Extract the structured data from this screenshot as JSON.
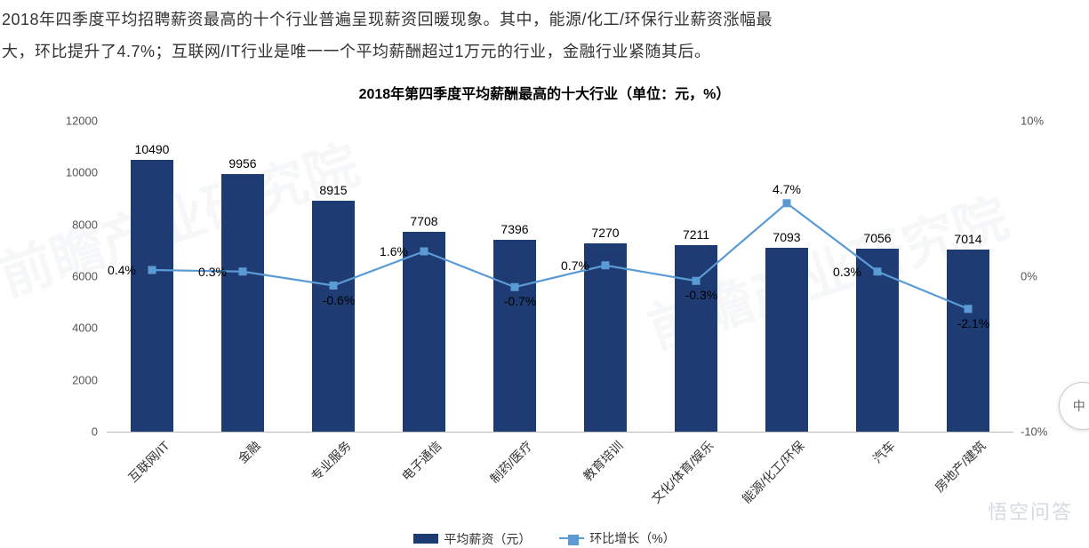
{
  "intro": {
    "line1": "2018年四季度平均招聘薪资最高的十个行业普遍呈现薪资回暖现象。其中，能源/化工/环保行业薪资涨幅最",
    "line2": "大，环比提升了4.7%；互联网/IT行业是唯一一个平均薪酬超过1万元的行业，金融行业紧随其后。"
  },
  "chart": {
    "title": "2018年第四季度平均薪酬最高的十大行业（单位：元，%）",
    "type": "bar+line",
    "categories": [
      "互联网/IT",
      "金融",
      "专业服务",
      "电子通信",
      "制药/医疗",
      "教育培训",
      "文化/体育/娱乐",
      "能源/化工/环保",
      "汽车",
      "房地产/建筑"
    ],
    "bar_values": [
      10490,
      9956,
      8915,
      7708,
      7396,
      7270,
      7211,
      7093,
      7056,
      7014
    ],
    "line_values_pct": [
      0.4,
      0.3,
      -0.6,
      1.6,
      -0.7,
      0.7,
      -0.3,
      4.7,
      0.3,
      -2.1
    ],
    "pct_label_pos": [
      "left",
      "left",
      "below",
      "left",
      "below",
      "left",
      "below",
      "above",
      "left",
      "below"
    ],
    "bar_color": "#1f3b73",
    "line_color": "#5b9bd5",
    "marker_fill": "#5b9bd5",
    "marker_border": "#5b9bd5",
    "y_left": {
      "min": 0,
      "max": 12000,
      "step": 2000
    },
    "y_right": {
      "min": -10,
      "max": 10,
      "step": 10,
      "suffix": "%"
    },
    "bar_width_ratio": 0.48,
    "x_label_rotation_deg": -45,
    "label_fontsize": 14,
    "title_fontsize": 16,
    "background_color": "#ffffff",
    "legend": {
      "bar_label": "平均薪资（元）",
      "line_label": "环比增长（%）"
    }
  },
  "watermarks": {
    "text": "前瞻产业研究院",
    "bottom_brand": "悟空问答"
  },
  "side_bubble": "中 ›"
}
